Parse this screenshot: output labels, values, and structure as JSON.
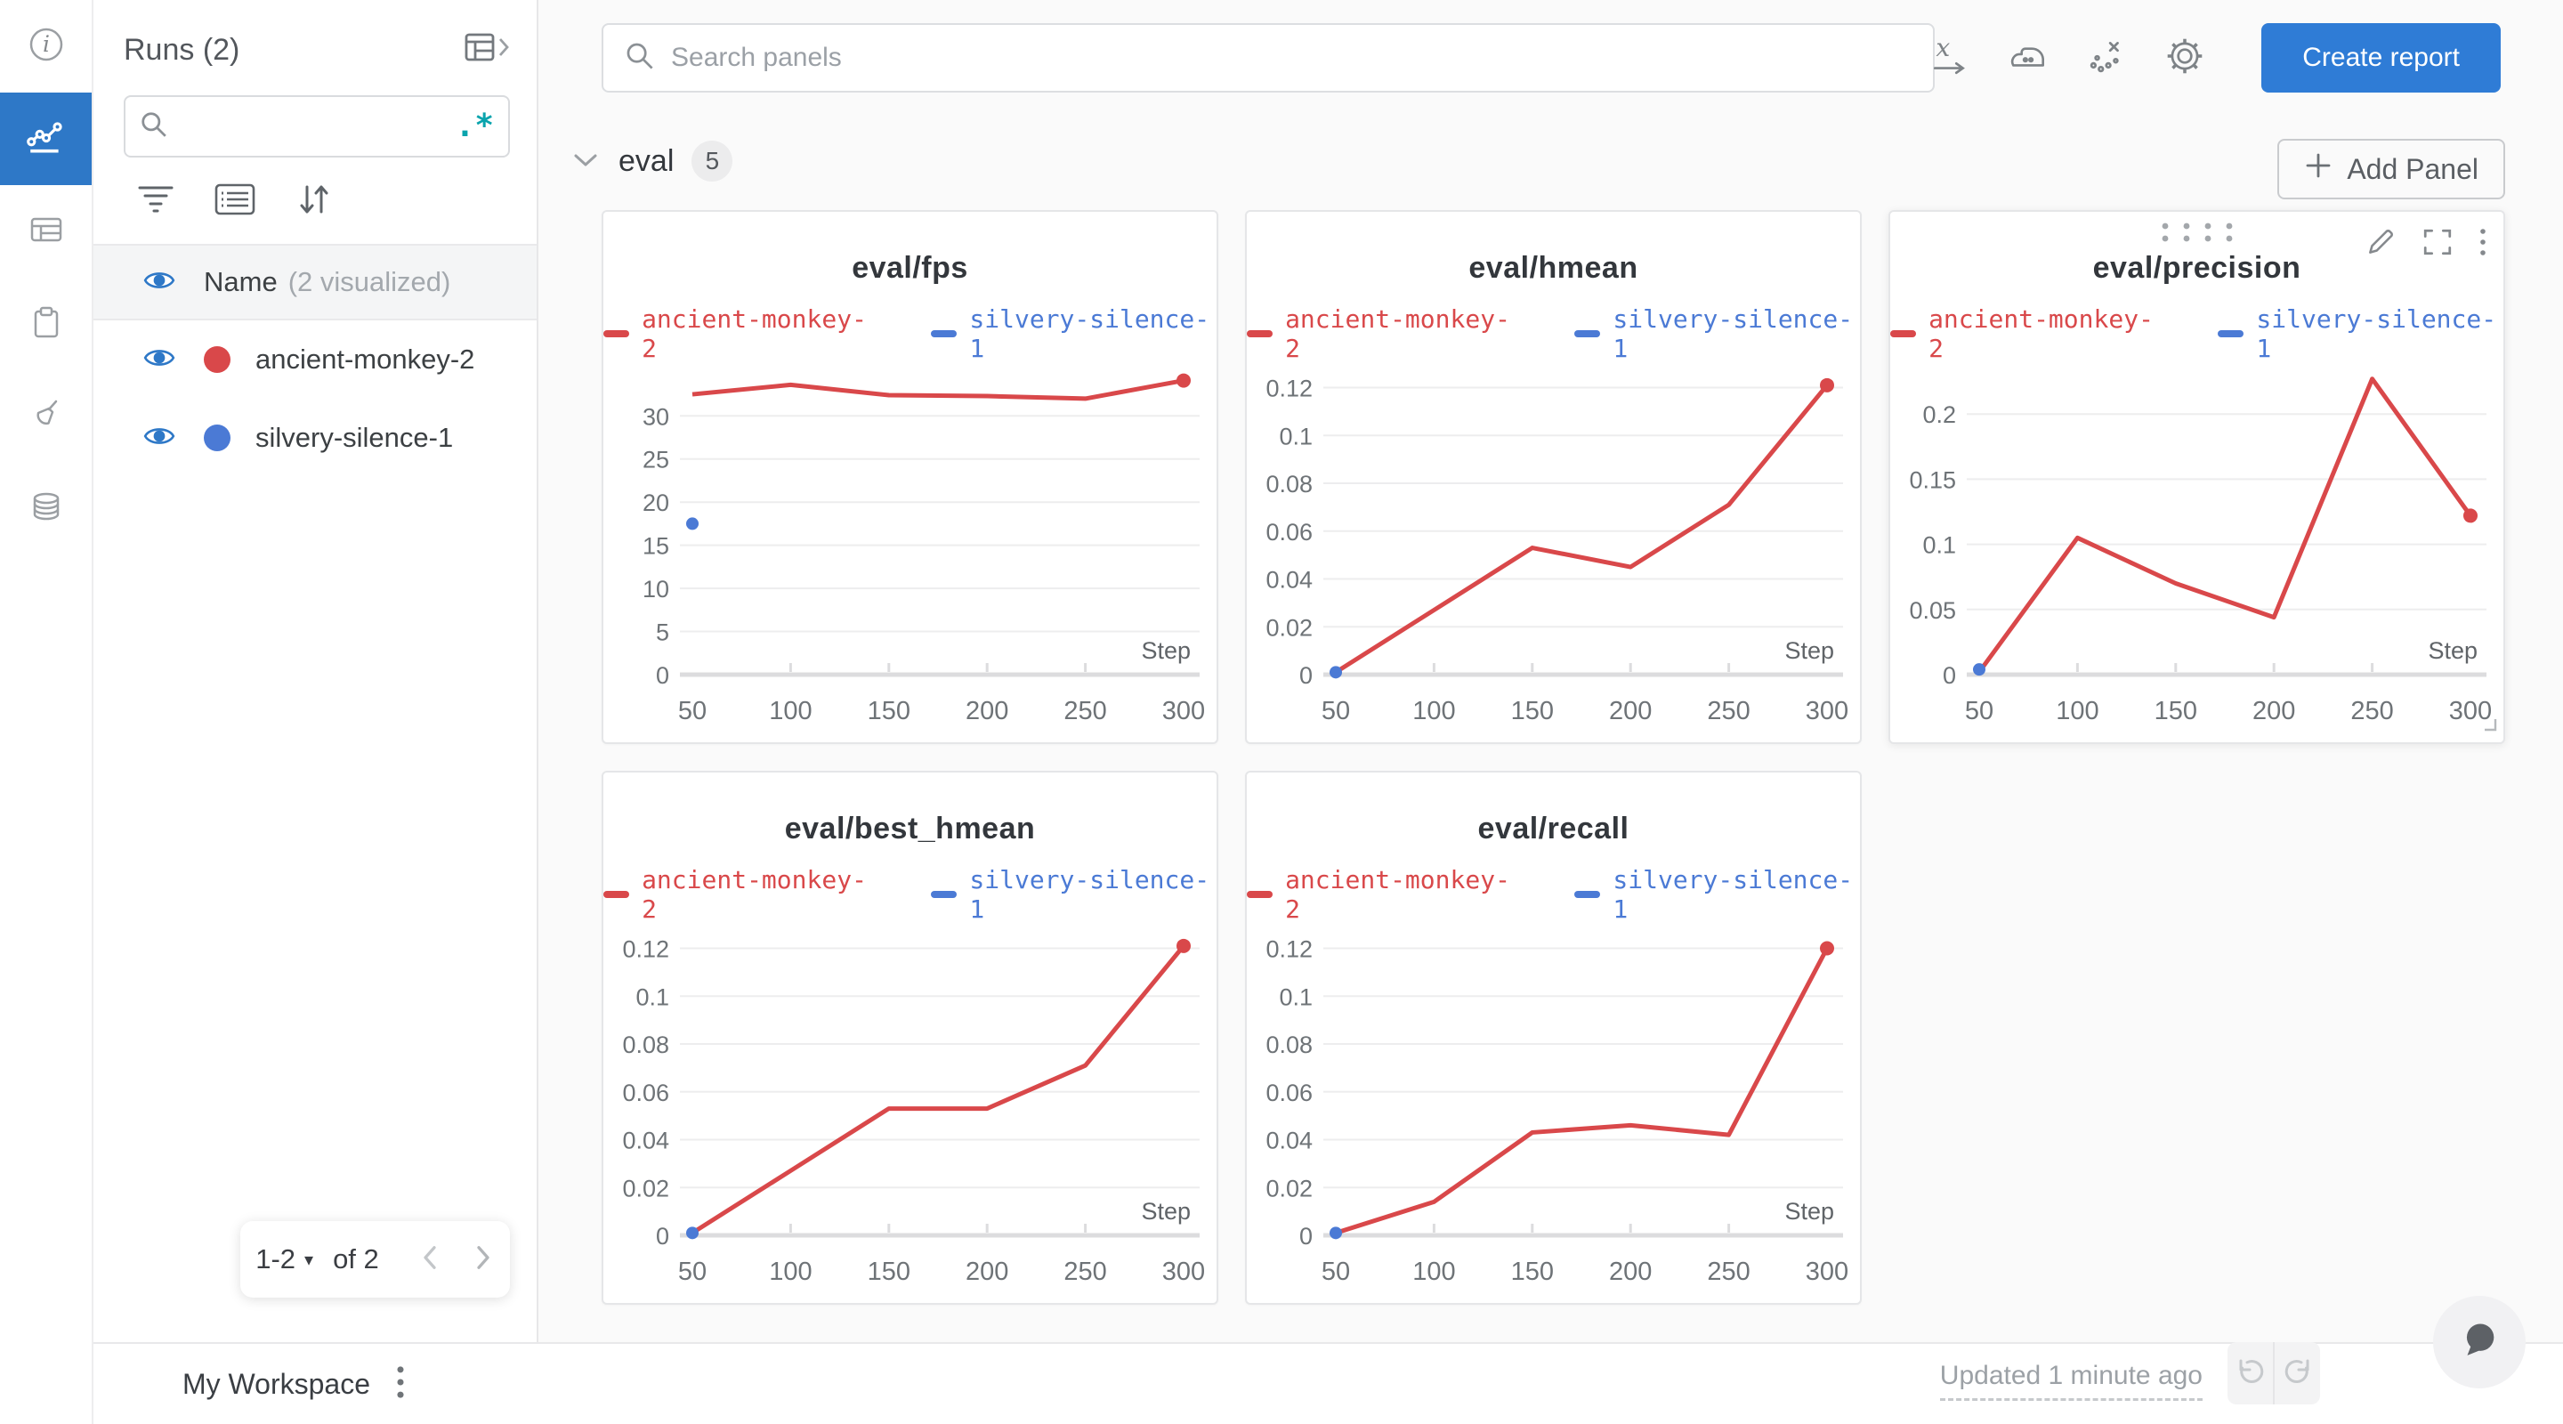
{
  "colors": {
    "accent_blue": "#2e78c7",
    "button_blue": "#2f7cd6",
    "teal": "#0aa4ad",
    "run_red": "#d9484a",
    "run_blue": "#4b7ad5",
    "grid": "#ededee",
    "axis": "#dcdcde",
    "tick_text": "#6e7377"
  },
  "rail": {
    "icons": [
      "info-icon",
      "line-chart-icon",
      "table-icon",
      "clipboard-icon",
      "brush-icon",
      "database-icon"
    ],
    "active_index": 1
  },
  "runs_panel": {
    "title": "Runs (2)",
    "collapse_icon": "table-expand-icon",
    "search": {
      "value": "",
      "placeholder": "",
      "regex_label": ".*"
    },
    "tools": [
      "filter-icon",
      "list-icon",
      "sort-icon"
    ],
    "list_header": {
      "name": "Name",
      "visualized_note": "(2 visualized)"
    },
    "runs": [
      {
        "name": "ancient-monkey-2",
        "color": "#d9484a",
        "visible": true
      },
      {
        "name": "silvery-silence-1",
        "color": "#4b7ad5",
        "visible": true
      }
    ],
    "pagination": {
      "range_label": "1-2",
      "of_label": "of 2"
    }
  },
  "topbar": {
    "search_placeholder": "Search panels",
    "icons": [
      "x-axis-icon",
      "smoothing-iron-icon",
      "outliers-icon",
      "settings-gear-icon"
    ],
    "create_report_label": "Create report"
  },
  "section": {
    "title": "eval",
    "panel_count": "5",
    "add_panel_label": "Add Panel"
  },
  "footer": {
    "workspace_label": "My Workspace",
    "updated_label": "Updated 1 minute ago"
  },
  "chart_data": [
    {
      "type": "line",
      "title": "eval/fps",
      "xlabel": "Step",
      "grid": "horizontal",
      "legend_position": "top",
      "x": [
        50,
        100,
        150,
        200,
        250,
        300
      ],
      "yticks": [
        0,
        5,
        10,
        15,
        20,
        25,
        30
      ],
      "ytick_labels": [
        "0",
        "5",
        "10",
        "15",
        "20",
        "25",
        "30"
      ],
      "ymax": 35.5,
      "series": [
        {
          "name": "ancient-monkey-2",
          "color": "#d9484a",
          "values": [
            32.5,
            33.6,
            32.4,
            32.3,
            32.0,
            34.1
          ],
          "endpoint_marker": true
        },
        {
          "name": "silvery-silence-1",
          "color": "#4b7ad5",
          "values": [
            17.5,
            null,
            null,
            null,
            null,
            null
          ],
          "point_only": true
        }
      ]
    },
    {
      "type": "line",
      "title": "eval/hmean",
      "xlabel": "Step",
      "grid": "horizontal",
      "legend_position": "top",
      "x": [
        50,
        100,
        150,
        200,
        250,
        300
      ],
      "yticks": [
        0,
        0.02,
        0.04,
        0.06,
        0.08,
        0.1,
        0.12
      ],
      "ytick_labels": [
        "0",
        "0.02",
        "0.04",
        "0.06",
        "0.08",
        "0.1",
        "0.12"
      ],
      "ymax": 0.128,
      "series": [
        {
          "name": "ancient-monkey-2",
          "color": "#d9484a",
          "values": [
            0.001,
            0.027,
            0.053,
            0.045,
            0.071,
            0.121
          ],
          "endpoint_marker": true
        },
        {
          "name": "silvery-silence-1",
          "color": "#4b7ad5",
          "values": [
            0.001,
            null,
            null,
            null,
            null,
            null
          ],
          "point_only": true
        }
      ]
    },
    {
      "type": "line",
      "title": "eval/precision",
      "xlabel": "Step",
      "grid": "horizontal",
      "legend_position": "top",
      "hovered": true,
      "x": [
        50,
        100,
        150,
        200,
        250,
        300
      ],
      "yticks": [
        0,
        0.05,
        0.1,
        0.15,
        0.2
      ],
      "ytick_labels": [
        "0",
        "0.05",
        "0.1",
        "0.15",
        "0.2"
      ],
      "ymax": 0.235,
      "series": [
        {
          "name": "ancient-monkey-2",
          "color": "#d9484a",
          "values": [
            0.002,
            0.105,
            0.07,
            0.044,
            0.227,
            0.122
          ],
          "endpoint_marker": true
        },
        {
          "name": "silvery-silence-1",
          "color": "#4b7ad5",
          "values": [
            0.004,
            null,
            null,
            null,
            null,
            null
          ],
          "point_only": true
        }
      ]
    },
    {
      "type": "line",
      "title": "eval/best_hmean",
      "xlabel": "Step",
      "grid": "horizontal",
      "legend_position": "top",
      "x": [
        50,
        100,
        150,
        200,
        250,
        300
      ],
      "yticks": [
        0,
        0.02,
        0.04,
        0.06,
        0.08,
        0.1,
        0.12
      ],
      "ytick_labels": [
        "0",
        "0.02",
        "0.04",
        "0.06",
        "0.08",
        "0.1",
        "0.12"
      ],
      "ymax": 0.128,
      "series": [
        {
          "name": "ancient-monkey-2",
          "color": "#d9484a",
          "values": [
            0.001,
            0.027,
            0.053,
            0.053,
            0.071,
            0.121
          ],
          "endpoint_marker": true
        },
        {
          "name": "silvery-silence-1",
          "color": "#4b7ad5",
          "values": [
            0.001,
            null,
            null,
            null,
            null,
            null
          ],
          "point_only": true
        }
      ]
    },
    {
      "type": "line",
      "title": "eval/recall",
      "xlabel": "Step",
      "grid": "horizontal",
      "legend_position": "top",
      "x": [
        50,
        100,
        150,
        200,
        250,
        300
      ],
      "yticks": [
        0,
        0.02,
        0.04,
        0.06,
        0.08,
        0.1,
        0.12
      ],
      "ytick_labels": [
        "0",
        "0.02",
        "0.04",
        "0.06",
        "0.08",
        "0.1",
        "0.12"
      ],
      "ymax": 0.128,
      "series": [
        {
          "name": "ancient-monkey-2",
          "color": "#d9484a",
          "values": [
            0.001,
            0.014,
            0.043,
            0.046,
            0.042,
            0.12
          ],
          "endpoint_marker": true
        },
        {
          "name": "silvery-silence-1",
          "color": "#4b7ad5",
          "values": [
            0.001,
            null,
            null,
            null,
            null,
            null
          ],
          "point_only": true
        }
      ]
    }
  ]
}
